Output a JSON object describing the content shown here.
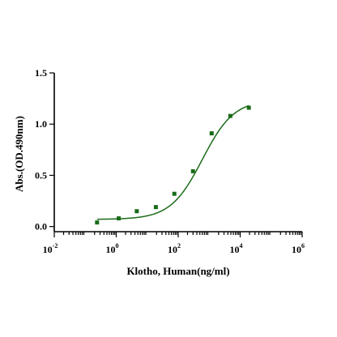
{
  "chart_data": {
    "type": "scatter",
    "title": "",
    "xlabel": "Klotho, Human(ng/ml)",
    "ylabel": "Abs.(OD.490nm)",
    "x_scale": "log10",
    "xlim": [
      0.01,
      1000000
    ],
    "ylim": [
      -0.05,
      1.5
    ],
    "x_ticks": [
      {
        "value": 0.01,
        "base": "10",
        "exp": "-2"
      },
      {
        "value": 1,
        "base": "10",
        "exp": "0"
      },
      {
        "value": 100,
        "base": "10",
        "exp": "2"
      },
      {
        "value": 10000,
        "base": "10",
        "exp": "4"
      },
      {
        "value": 1000000,
        "base": "10",
        "exp": "6"
      }
    ],
    "y_ticks": [
      {
        "value": 0.0,
        "label": "0.0"
      },
      {
        "value": 0.5,
        "label": "0.5"
      },
      {
        "value": 1.0,
        "label": "1.0"
      },
      {
        "value": 1.5,
        "label": "1.5"
      }
    ],
    "grid": false,
    "legend": "none",
    "colors": {
      "series": "#1a6b1a",
      "axis": "#000000"
    },
    "series": [
      {
        "marker": "square",
        "points": [
          {
            "x": 0.24,
            "y": 0.04
          },
          {
            "x": 1.2,
            "y": 0.08
          },
          {
            "x": 4.6,
            "y": 0.15
          },
          {
            "x": 19,
            "y": 0.19
          },
          {
            "x": 75,
            "y": 0.32
          },
          {
            "x": 300,
            "y": 0.54
          },
          {
            "x": 1200,
            "y": 0.91
          },
          {
            "x": 4800,
            "y": 1.08
          },
          {
            "x": 19000,
            "y": 1.16
          }
        ],
        "fit": {
          "model": "4PL",
          "bottom": 0.07,
          "top": 1.24,
          "ec50": 600,
          "hill": 0.85,
          "x_range": [
            0.24,
            19000
          ]
        }
      }
    ]
  }
}
